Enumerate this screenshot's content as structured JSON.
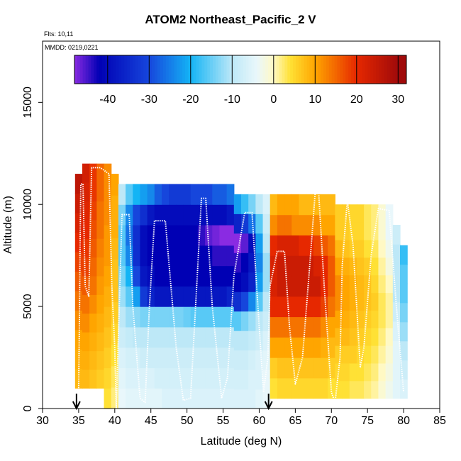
{
  "chart_data": {
    "type": "heatmap",
    "title": "ATOM2 Northeast_Pacific_2 V",
    "notes": [
      "Flts: 10,11",
      "MMDD: 0219,0221"
    ],
    "xlabel": "Latitude (deg N)",
    "ylabel": "Altitude (m)",
    "xlim": [
      30,
      85
    ],
    "ylim": [
      0,
      18000
    ],
    "x_ticks": [
      30,
      35,
      40,
      45,
      50,
      55,
      60,
      65,
      70,
      75,
      80,
      85
    ],
    "y_ticks": [
      0,
      5000,
      10000,
      15000
    ],
    "colorbar": {
      "range": [
        -48,
        32
      ],
      "ticks": [
        -40,
        -30,
        -20,
        -10,
        0,
        10,
        20,
        30
      ],
      "stops": [
        {
          "value": -48,
          "color": "#8a2be2"
        },
        {
          "value": -42,
          "color": "#0000b4"
        },
        {
          "value": -30,
          "color": "#1646dc"
        },
        {
          "value": -20,
          "color": "#14b4f5"
        },
        {
          "value": -10,
          "color": "#bde8f7"
        },
        {
          "value": -4,
          "color": "#e9f7fb"
        },
        {
          "value": 0,
          "color": "#fff9c4"
        },
        {
          "value": 4,
          "color": "#ffe135"
        },
        {
          "value": 10,
          "color": "#ffa500"
        },
        {
          "value": 20,
          "color": "#e62800"
        },
        {
          "value": 30,
          "color": "#a00a0a"
        }
      ]
    },
    "markers": [
      {
        "lat": 34.7,
        "label": "flight start arrow"
      },
      {
        "lat": 61.3,
        "label": "flight end arrow"
      }
    ],
    "columns": [
      {
        "lat": [
          34.5,
          35.5
        ],
        "alt": [
          1000,
          11500
        ],
        "v": [
          8,
          9,
          10,
          12,
          14,
          16,
          18,
          20,
          22,
          24,
          26
        ]
      },
      {
        "lat": [
          35.5,
          36.5
        ],
        "alt": [
          1000,
          12000
        ],
        "v": [
          8,
          9,
          10,
          12,
          14,
          16,
          18,
          19,
          20,
          21,
          22,
          23
        ]
      },
      {
        "lat": [
          36.5,
          37.5
        ],
        "alt": [
          1000,
          12000
        ],
        "v": [
          7,
          8,
          9,
          10,
          12,
          14,
          15,
          16,
          17,
          18,
          19,
          19
        ]
      },
      {
        "lat": [
          37.5,
          38.5
        ],
        "alt": [
          1000,
          12000
        ],
        "v": [
          6,
          7,
          8,
          9,
          10,
          11,
          12,
          13,
          14,
          14,
          15,
          15
        ]
      },
      {
        "lat": [
          38.5,
          39.5
        ],
        "alt": [
          0,
          12000
        ],
        "v": [
          4,
          5,
          6,
          7,
          8,
          9,
          10,
          11,
          11,
          12,
          12,
          12
        ]
      },
      {
        "lat": [
          39.5,
          40.5
        ],
        "alt": [
          0,
          11500
        ],
        "v": [
          2,
          3,
          4,
          5,
          6,
          7,
          7,
          8,
          9,
          9,
          10
        ]
      },
      {
        "lat": [
          40.5,
          41.5
        ],
        "alt": [
          0,
          11000
        ],
        "v": [
          -4,
          -5,
          -6,
          -8,
          -10,
          -12,
          -14,
          -16,
          -16,
          -14,
          -10
        ]
      },
      {
        "lat": [
          41.5,
          42.5
        ],
        "alt": [
          0,
          11000
        ],
        "v": [
          -5,
          -6,
          -7,
          -9,
          -12,
          -16,
          -20,
          -24,
          -26,
          -24,
          -16
        ]
      },
      {
        "lat": [
          42.5,
          43.5
        ],
        "alt": [
          0,
          11000
        ],
        "v": [
          -5,
          -6,
          -7,
          -10,
          -13,
          -22,
          -30,
          -34,
          -34,
          -30,
          -20
        ]
      },
      {
        "lat": [
          43.5,
          44.5
        ],
        "alt": [
          0,
          11000
        ],
        "v": [
          -5,
          -6,
          -8,
          -10,
          -14,
          -32,
          -38,
          -40,
          -40,
          -34,
          -22
        ]
      },
      {
        "lat": [
          44.5,
          45.5
        ],
        "alt": [
          0,
          11000
        ],
        "v": [
          -5,
          -6,
          -8,
          -10,
          -14,
          -36,
          -40,
          -42,
          -42,
          -38,
          -24
        ]
      },
      {
        "lat": [
          45.5,
          46.5
        ],
        "alt": [
          0,
          11000
        ],
        "v": [
          -5,
          -7,
          -8,
          -10,
          -14,
          -38,
          -42,
          -42,
          -42,
          -40,
          -28
        ]
      },
      {
        "lat": [
          46.5,
          47.5
        ],
        "alt": [
          0,
          11000
        ],
        "v": [
          -6,
          -7,
          -8,
          -10,
          -14,
          -38,
          -42,
          -42,
          -42,
          -40,
          -30
        ]
      },
      {
        "lat": [
          47.5,
          48.5
        ],
        "alt": [
          0,
          11000
        ],
        "v": [
          -6,
          -7,
          -8,
          -10,
          -14,
          -38,
          -42,
          -42,
          -42,
          -40,
          -32
        ]
      },
      {
        "lat": [
          48.5,
          49.5
        ],
        "alt": [
          0,
          11000
        ],
        "v": [
          -6,
          -7,
          -8,
          -10,
          -14,
          -38,
          -42,
          -42,
          -42,
          -40,
          -32
        ]
      },
      {
        "lat": [
          49.5,
          50.5
        ],
        "alt": [
          0,
          11000
        ],
        "v": [
          -6,
          -7,
          -8,
          -10,
          -15,
          -38,
          -42,
          -42,
          -42,
          -40,
          -32
        ]
      },
      {
        "lat": [
          50.5,
          51.5
        ],
        "alt": [
          0,
          11000
        ],
        "v": [
          -6,
          -7,
          -8,
          -10,
          -16,
          -38,
          -42,
          -42,
          -42,
          -40,
          -30
        ]
      },
      {
        "lat": [
          51.5,
          52.5
        ],
        "alt": [
          0,
          11000
        ],
        "v": [
          -6,
          -7,
          -8,
          -10,
          -16,
          -38,
          -42,
          -42,
          -44,
          -40,
          -30
        ]
      },
      {
        "lat": [
          52.5,
          53.5
        ],
        "alt": [
          0,
          11000
        ],
        "v": [
          -6,
          -7,
          -8,
          -10,
          -16,
          -38,
          -42,
          -42,
          -46,
          -40,
          -30
        ]
      },
      {
        "lat": [
          53.5,
          54.5
        ],
        "alt": [
          0,
          11000
        ],
        "v": [
          -6,
          -7,
          -8,
          -10,
          -16,
          -38,
          -42,
          -44,
          -47,
          -40,
          -28
        ]
      },
      {
        "lat": [
          54.5,
          55.5
        ],
        "alt": [
          0,
          11000
        ],
        "v": [
          -6,
          -7,
          -8,
          -10,
          -16,
          -38,
          -42,
          -44,
          -48,
          -40,
          -28
        ]
      },
      {
        "lat": [
          55.5,
          56.5
        ],
        "alt": [
          0,
          11000
        ],
        "v": [
          -6,
          -7,
          -8,
          -10,
          -16,
          -36,
          -42,
          -44,
          -48,
          -38,
          -26
        ]
      },
      {
        "lat": [
          56.5,
          57.5
        ],
        "alt": [
          0,
          10500
        ],
        "v": [
          -6,
          -7,
          -8,
          -10,
          -16,
          -34,
          -42,
          -44,
          -48,
          -36,
          -22
        ]
      },
      {
        "lat": [
          57.5,
          58.5
        ],
        "alt": [
          0,
          10500
        ],
        "v": [
          -6,
          -7,
          -8,
          -10,
          -14,
          -30,
          -40,
          -42,
          -46,
          -32,
          -18
        ]
      },
      {
        "lat": [
          58.5,
          59.5
        ],
        "alt": [
          0,
          10500
        ],
        "v": [
          -6,
          -6,
          -7,
          -9,
          -12,
          -24,
          -36,
          -38,
          -40,
          -26,
          -14
        ]
      },
      {
        "lat": [
          59.5,
          60.5
        ],
        "alt": [
          0,
          10500
        ],
        "v": [
          -5,
          -6,
          -6,
          -8,
          -10,
          -16,
          -22,
          -24,
          -22,
          -16,
          -10
        ]
      },
      {
        "lat": [
          60.5,
          61.5
        ],
        "alt": [
          0,
          10500
        ],
        "v": [
          -4,
          -4,
          -5,
          -6,
          -8,
          -10,
          -12,
          -12,
          -10,
          -8,
          -6
        ]
      },
      {
        "lat": [
          61.5,
          62.5
        ],
        "alt": [
          500,
          10500
        ],
        "v": [
          4,
          6,
          10,
          14,
          20,
          22,
          22,
          20,
          12,
          8
        ]
      },
      {
        "lat": [
          62.5,
          63.5
        ],
        "alt": [
          500,
          10500
        ],
        "v": [
          5,
          7,
          10,
          14,
          20,
          24,
          24,
          22,
          14,
          10
        ]
      },
      {
        "lat": [
          63.5,
          64.5
        ],
        "alt": [
          500,
          10500
        ],
        "v": [
          5,
          7,
          10,
          14,
          20,
          24,
          24,
          22,
          14,
          10
        ]
      },
      {
        "lat": [
          64.5,
          65.5
        ],
        "alt": [
          500,
          10500
        ],
        "v": [
          5,
          7,
          10,
          14,
          20,
          24,
          24,
          22,
          12,
          10
        ]
      },
      {
        "lat": [
          65.5,
          66.5
        ],
        "alt": [
          500,
          10500
        ],
        "v": [
          5,
          7,
          10,
          14,
          20,
          24,
          24,
          20,
          12,
          8
        ]
      },
      {
        "lat": [
          66.5,
          67.5
        ],
        "alt": [
          500,
          10500
        ],
        "v": [
          5,
          7,
          10,
          14,
          20,
          24,
          24,
          20,
          12,
          8
        ]
      },
      {
        "lat": [
          67.5,
          68.5
        ],
        "alt": [
          500,
          10500
        ],
        "v": [
          5,
          7,
          10,
          14,
          20,
          24,
          22,
          18,
          12,
          8
        ]
      },
      {
        "lat": [
          68.5,
          69.5
        ],
        "alt": [
          500,
          10500
        ],
        "v": [
          5,
          7,
          9,
          12,
          18,
          20,
          20,
          16,
          10,
          8
        ]
      },
      {
        "lat": [
          69.5,
          70.5
        ],
        "alt": [
          500,
          10500
        ],
        "v": [
          4,
          6,
          8,
          10,
          14,
          16,
          16,
          14,
          10,
          8
        ]
      },
      {
        "lat": [
          70.5,
          71.5
        ],
        "alt": [
          500,
          10000
        ],
        "v": [
          4,
          5,
          6,
          8,
          10,
          12,
          12,
          10,
          8,
          6,
          6
        ]
      },
      {
        "lat": [
          71.5,
          72.5
        ],
        "alt": [
          500,
          10000
        ],
        "v": [
          4,
          5,
          6,
          8,
          9,
          10,
          10,
          9,
          7,
          6,
          6
        ]
      },
      {
        "lat": [
          72.5,
          73.5
        ],
        "alt": [
          500,
          10000
        ],
        "v": [
          3,
          4,
          6,
          7,
          8,
          9,
          9,
          8,
          6,
          5,
          5
        ]
      },
      {
        "lat": [
          73.5,
          74.5
        ],
        "alt": [
          500,
          10000
        ],
        "v": [
          3,
          4,
          5,
          6,
          7,
          8,
          8,
          7,
          6,
          5,
          5
        ]
      },
      {
        "lat": [
          74.5,
          75.5
        ],
        "alt": [
          500,
          10000
        ],
        "v": [
          2,
          3,
          4,
          5,
          6,
          7,
          7,
          6,
          4,
          3,
          3
        ]
      },
      {
        "lat": [
          75.5,
          76.5
        ],
        "alt": [
          500,
          10000
        ],
        "v": [
          1,
          2,
          3,
          4,
          5,
          6,
          5,
          4,
          3,
          2,
          2
        ]
      },
      {
        "lat": [
          76.5,
          77.5
        ],
        "alt": [
          500,
          10000
        ],
        "v": [
          -1,
          0,
          1,
          2,
          3,
          3,
          2,
          1,
          0,
          -1,
          -1
        ]
      },
      {
        "lat": [
          77.5,
          78.5
        ],
        "alt": [
          500,
          10000
        ],
        "v": [
          -3,
          -2,
          -1,
          0,
          1,
          1,
          0,
          -2,
          -3,
          -4,
          -4
        ]
      },
      {
        "lat": [
          78.5,
          79.5
        ],
        "alt": [
          500,
          9000
        ],
        "v": [
          -5,
          -5,
          -5,
          -6,
          -8,
          -10,
          -10,
          -10,
          -8
        ]
      },
      {
        "lat": [
          79.5,
          80.5
        ],
        "alt": [
          500,
          8000
        ],
        "v": [
          -6,
          -8,
          -10,
          -12,
          -14,
          -16,
          -16,
          -18
        ]
      }
    ],
    "flight_track": [
      [
        35.0,
        1000
      ],
      [
        35.1,
        4000
      ],
      [
        35.2,
        8000
      ],
      [
        35.3,
        11000
      ],
      [
        35.6,
        11000
      ],
      [
        35.9,
        6000
      ],
      [
        36.4,
        5500
      ],
      [
        36.8,
        11800
      ],
      [
        38.0,
        11800
      ],
      [
        39.2,
        11500
      ],
      [
        39.6,
        6000
      ],
      [
        40.0,
        3000
      ],
      [
        40.2,
        0
      ],
      [
        41.0,
        9500
      ],
      [
        42.0,
        9500
      ],
      [
        42.5,
        5000
      ],
      [
        43.5,
        500
      ],
      [
        44.2,
        300
      ],
      [
        44.8,
        5000
      ],
      [
        45.5,
        9200
      ],
      [
        47.0,
        9200
      ],
      [
        48.5,
        3000
      ],
      [
        49.5,
        400
      ],
      [
        50.5,
        500
      ],
      [
        51.5,
        7000
      ],
      [
        52.0,
        10300
      ],
      [
        52.6,
        10300
      ],
      [
        53.5,
        5000
      ],
      [
        54.8,
        500
      ],
      [
        55.6,
        1500
      ],
      [
        56.5,
        6500
      ],
      [
        58.0,
        9600
      ],
      [
        59.0,
        9600
      ],
      [
        60.0,
        4000
      ],
      [
        60.6,
        800
      ],
      [
        61.2,
        2500
      ],
      [
        61.5,
        6000
      ],
      [
        62.5,
        7700
      ],
      [
        63.5,
        7700
      ],
      [
        64.2,
        4000
      ],
      [
        65.0,
        1200
      ],
      [
        66.0,
        2500
      ],
      [
        67.0,
        7000
      ],
      [
        67.8,
        10800
      ],
      [
        68.2,
        10800
      ],
      [
        69.0,
        6000
      ],
      [
        70.0,
        800
      ],
      [
        70.5,
        300
      ],
      [
        71.2,
        2500
      ],
      [
        71.5,
        7000
      ],
      [
        72.2,
        10200
      ],
      [
        73.0,
        8000
      ],
      [
        74.0,
        2000
      ],
      [
        74.5,
        3000
      ],
      [
        75.5,
        7500
      ],
      [
        76.5,
        9800
      ],
      [
        78.0,
        9700
      ],
      [
        79.0,
        5000
      ],
      [
        80.0,
        800
      ]
    ]
  }
}
